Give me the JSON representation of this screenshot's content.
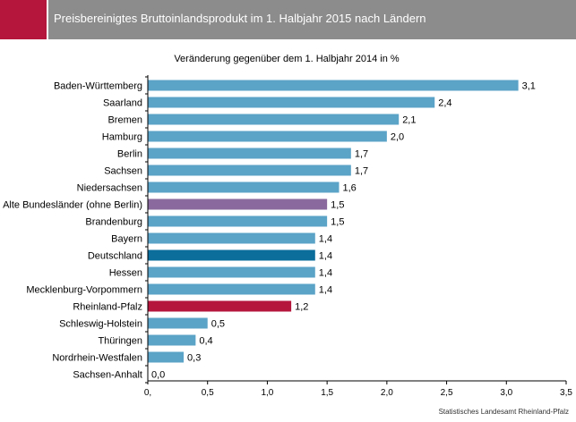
{
  "header": {
    "title": "Preisbereinigtes Bruttoinlandsprodukt im 1. Halbjahr 2015 nach Ländern"
  },
  "footer": {
    "source": "Statistisches Landesamt Rheinland-Pfalz"
  },
  "colors": {
    "default": "#5ba3c7",
    "alte": "#8a6a9e",
    "deutschland": "#0b6e9b",
    "rlp": "#b5163c",
    "header_accent": "#b5163c",
    "header_bar": "#8c8c8c"
  },
  "chart_data": {
    "type": "bar",
    "orientation": "horizontal",
    "title": "Veränderung gegenüber dem 1. Halbjahr 2014 in %",
    "categories": [
      "Baden-Württemberg",
      "Saarland",
      "Bremen",
      "Hamburg",
      "Berlin",
      "Sachsen",
      "Niedersachsen",
      "Alte Bundesländer (ohne Berlin)",
      "Brandenburg",
      "Bayern",
      "Deutschland",
      "Hessen",
      "Mecklenburg-Vorpommern",
      "Rheinland-Pfalz",
      "Schleswig-Holstein",
      "Thüringen",
      "Nordrhein-Westfalen",
      "Sachsen-Anhalt"
    ],
    "values": [
      3.1,
      2.4,
      2.1,
      2.0,
      1.7,
      1.7,
      1.6,
      1.5,
      1.5,
      1.4,
      1.4,
      1.4,
      1.4,
      1.2,
      0.5,
      0.4,
      0.3,
      0.0
    ],
    "value_labels": [
      "3,1",
      "2,4",
      "2,1",
      "2,0",
      "1,7",
      "1,7",
      "1,6",
      "1,5",
      "1,5",
      "1,4",
      "1,4",
      "1,4",
      "1,4",
      "1,2",
      "0,5",
      "0,4",
      "0,3",
      "0,0"
    ],
    "highlight": {
      "Alte Bundesländer (ohne Berlin)": "#8a6a9e",
      "Deutschland": "#0b6e9b",
      "Rheinland-Pfalz": "#b5163c"
    },
    "xlim": [
      0,
      3.5
    ],
    "xticks": [
      0,
      0.5,
      1.0,
      1.5,
      2.0,
      2.5,
      3.0,
      3.5
    ],
    "xtick_labels": [
      "0,",
      "0,5",
      "1,0",
      "1,5",
      "2,0",
      "2,5",
      "3,0",
      "3,5"
    ],
    "grid": false,
    "legend": "none"
  }
}
